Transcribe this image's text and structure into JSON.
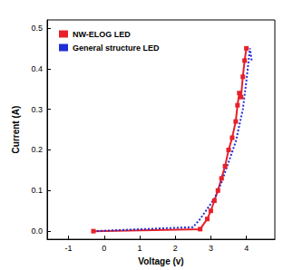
{
  "chart_data": {
    "type": "line",
    "x_label": "Voltage (v)",
    "y_label": "Current (A)",
    "xlim": [
      -1.6,
      4.8
    ],
    "xticks": [
      -1,
      0,
      1,
      2,
      3,
      4
    ],
    "ylim": [
      -0.02,
      0.52
    ],
    "yticks": [
      {
        "value": 0,
        "label": "0.0"
      },
      0.1,
      0.2,
      0.3,
      0.4,
      0.5
    ],
    "grid": false,
    "legend": "top-left",
    "series": [
      {
        "name": "NW-ELOG LED",
        "color": "#e8202a",
        "marker": "square",
        "line_style": "solid",
        "x": [
          -0.3,
          2.7,
          2.9,
          3.0,
          3.1,
          3.2,
          3.3,
          3.4,
          3.5,
          3.6,
          3.7,
          3.75,
          3.8,
          3.85,
          3.9,
          3.95,
          4.0
        ],
        "values": [
          0.0,
          0.005,
          0.03,
          0.05,
          0.075,
          0.1,
          0.13,
          0.16,
          0.2,
          0.23,
          0.27,
          0.31,
          0.34,
          0.33,
          0.38,
          0.42,
          0.45
        ]
      },
      {
        "name": "General structure LED",
        "color": "#1f2fd6",
        "marker": "none",
        "line_style": "dotted",
        "x": [
          -0.3,
          2.5,
          2.7,
          2.9,
          3.1,
          3.3,
          3.5,
          3.7,
          3.8,
          3.9,
          4.0,
          4.05,
          4.1,
          4.15
        ],
        "values": [
          0.0,
          0.01,
          0.03,
          0.055,
          0.08,
          0.12,
          0.17,
          0.22,
          0.26,
          0.3,
          0.37,
          0.41,
          0.45,
          0.42
        ]
      }
    ]
  }
}
